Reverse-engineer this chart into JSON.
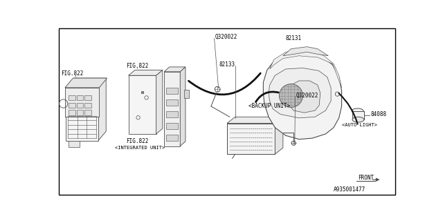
{
  "bg_color": "#ffffff",
  "border_color": "#000000",
  "line_color": "#4a4a4a",
  "fig_number": "A935001477",
  "labels": {
    "Q320022_top": "Q320022",
    "82131": "82131",
    "82133": "82133",
    "Q320022_bot": "Q320022",
    "backup_unit": "<BACKUP UNIT>",
    "84088": "84088",
    "auto_light": "<AUTO LIGHT>",
    "fig822_fuse": "FIG.822",
    "fig822_plate": "FIG.822",
    "fig822_ecu": "FIG.822",
    "integrated": "<INTEGRATED UNIT>",
    "front": "FRONT",
    "fignum": "A935001477"
  }
}
